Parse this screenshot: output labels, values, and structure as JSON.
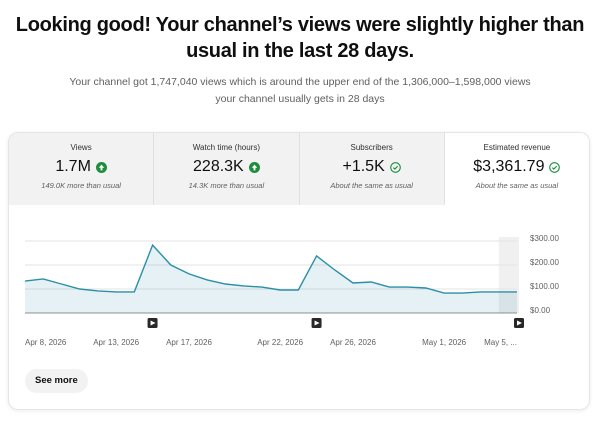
{
  "header": {
    "title": "Looking good! Your channel’s views were slightly higher than usual in the last 28 days.",
    "subtitle": "Your channel got 1,747,040 views which is around the upper end of the 1,306,000–1,598,000 views your channel usually gets in 28 days"
  },
  "cards": [
    {
      "label": "Views",
      "value": "1.7M",
      "icon": "up",
      "note": "149.0K more than usual"
    },
    {
      "label": "Watch time (hours)",
      "value": "228.3K",
      "icon": "up",
      "note": "14.3K more than usual"
    },
    {
      "label": "Subscribers",
      "value": "+1.5K",
      "icon": "check",
      "note": "About the same as usual"
    },
    {
      "label": "Estimated revenue",
      "value": "$3,361.79",
      "icon": "check",
      "note": "About the same as usual",
      "selected": true
    }
  ],
  "chart_data": {
    "type": "line",
    "color": "#2b8fa8",
    "categories": [
      "Apr 8, 2026",
      null,
      null,
      null,
      null,
      "Apr 13, 2026",
      null,
      null,
      null,
      "Apr 17, 2026",
      null,
      null,
      null,
      null,
      "Apr 22, 2026",
      null,
      null,
      null,
      "Apr 26, 2026",
      null,
      null,
      null,
      null,
      "May 1, 2026",
      null,
      null,
      null,
      "May 5, ..."
    ],
    "values": [
      133,
      142,
      121,
      100,
      92,
      88,
      88,
      283,
      200,
      163,
      138,
      121,
      113,
      108,
      96,
      96,
      238,
      179,
      125,
      129,
      108,
      108,
      104,
      83,
      83,
      88,
      88,
      88
    ],
    "ylim": [
      0,
      300
    ],
    "yticks": [
      {
        "value": 0,
        "label": "$0.00"
      },
      {
        "value": 100,
        "label": "$100.00"
      },
      {
        "value": 200,
        "label": "$200.00"
      },
      {
        "value": 300,
        "label": "$300.00"
      }
    ],
    "grid": true
  },
  "button": "See more"
}
